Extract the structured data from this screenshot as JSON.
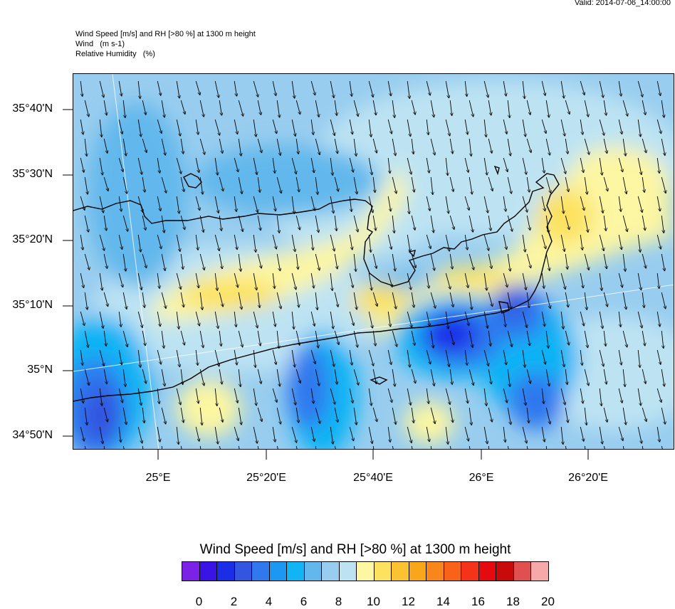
{
  "valid_label": "Valid: 2014-07-06_14:00:00",
  "header": {
    "line1": "Wind Speed [m/s] and RH [>80 %] at 1300 m height",
    "line2": "Wind   (m s-1)",
    "line3": "Relative Humidity   (%)"
  },
  "map": {
    "lat_labels": [
      "35°40'N",
      "35°30'N",
      "35°20'N",
      "35°10'N",
      "35°N",
      "34°50'N"
    ],
    "lon_labels": [
      "25°E",
      "25°20'E",
      "25°40'E",
      "26°E",
      "26°20'E"
    ]
  },
  "colorbar": {
    "title": "Wind Speed [m/s] and RH [>80 %] at 1300 m height",
    "colors": [
      "#7b22e6",
      "#3a14e6",
      "#1a2ee8",
      "#3355e0",
      "#2f78ee",
      "#1c97f2",
      "#11b4f5",
      "#62b8ec",
      "#98cdef",
      "#bde3f3",
      "#fdf6a2",
      "#fce25e",
      "#fbc232",
      "#faa61a",
      "#f8861a",
      "#f86319",
      "#f5321a",
      "#e50a10",
      "#c80a0a",
      "#e05050",
      "#f7a8a8"
    ],
    "labels": [
      "0",
      "2",
      "4",
      "6",
      "8",
      "10",
      "12",
      "14",
      "16",
      "18",
      "20"
    ]
  }
}
